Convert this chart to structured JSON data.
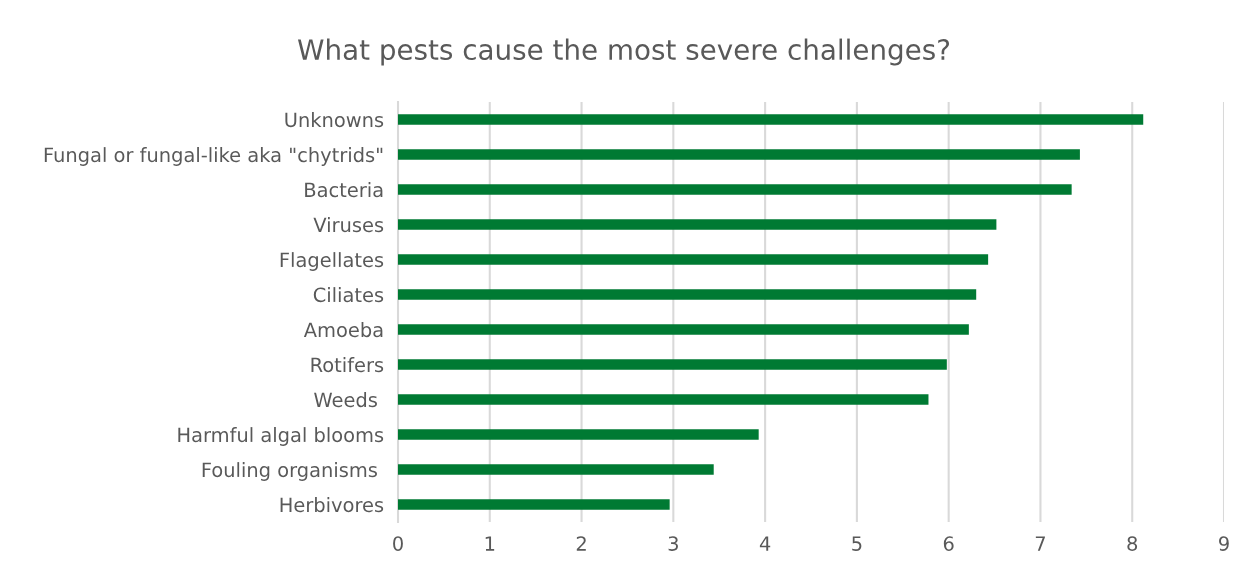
{
  "chart_data": {
    "type": "bar",
    "orientation": "horizontal",
    "title": "What pests cause the most severe challenges?",
    "categories": [
      "Unknowns",
      "Fungal or fungal-like aka \"chytrids\"",
      "Bacteria",
      "Viruses",
      "Flagellates",
      "Ciliates",
      "Amoeba",
      "Rotifers",
      "Weeds ",
      "Harmful algal blooms",
      "Fouling organisms ",
      "Herbivores"
    ],
    "values": [
      8.12,
      7.43,
      7.34,
      6.52,
      6.43,
      6.3,
      6.22,
      5.98,
      5.78,
      3.93,
      3.44,
      2.96
    ],
    "color": "#007a33",
    "xlim": [
      0,
      9
    ],
    "xticks": [
      0,
      1,
      2,
      3,
      4,
      5,
      6,
      7,
      8,
      9
    ],
    "grid": "x",
    "legend": false
  }
}
